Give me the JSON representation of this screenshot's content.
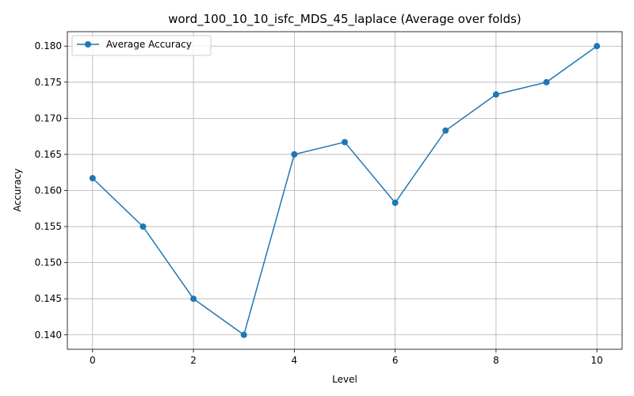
{
  "chart_data": {
    "type": "line",
    "title": "word_100_10_10_isfc_MDS_45_laplace (Average over folds)",
    "xlabel": "Level",
    "ylabel": "Accuracy",
    "xlim": [
      -0.5,
      10.5
    ],
    "ylim": [
      0.138,
      0.182
    ],
    "xticks": [
      0,
      2,
      4,
      6,
      8,
      10
    ],
    "yticks": [
      0.14,
      0.145,
      0.15,
      0.155,
      0.16,
      0.165,
      0.17,
      0.175,
      0.18
    ],
    "ytick_labels": [
      "0.140",
      "0.145",
      "0.150",
      "0.155",
      "0.160",
      "0.165",
      "0.170",
      "0.175",
      "0.180"
    ],
    "grid": true,
    "legend_position": "top-left",
    "series": [
      {
        "name": "Average Accuracy",
        "color": "#1f77b4",
        "marker": "circle",
        "x": [
          0,
          1,
          2,
          3,
          4,
          5,
          6,
          7,
          8,
          9,
          10
        ],
        "values": [
          0.1617,
          0.155,
          0.145,
          0.14,
          0.165,
          0.1667,
          0.1583,
          0.1683,
          0.1733,
          0.175,
          0.18
        ]
      }
    ]
  }
}
